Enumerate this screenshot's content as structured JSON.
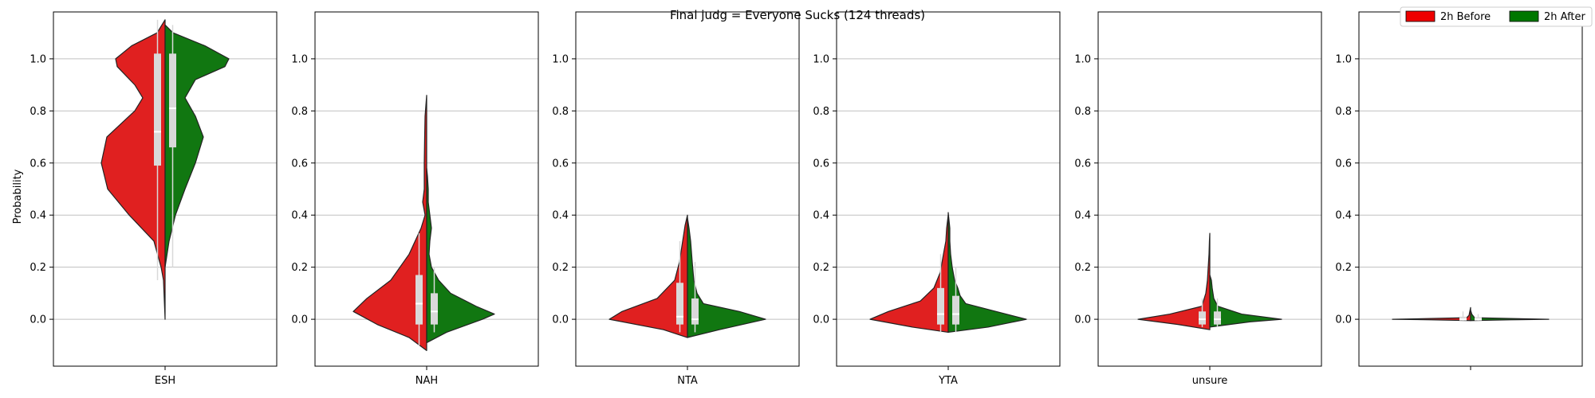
{
  "chart_data": {
    "type": "violin",
    "title": "Final judg = Everyone Sucks (124 threads)",
    "ylabel": "Probability",
    "ylim": [
      -0.18,
      1.18
    ],
    "yticks": [
      0.0,
      0.2,
      0.4,
      0.6,
      0.8,
      1.0
    ],
    "yticks_labels": [
      "0.0",
      "0.2",
      "0.4",
      "0.6",
      "0.8",
      "1.0"
    ],
    "grid": "horizontal",
    "legend": {
      "placement": "top-right",
      "entries": [
        {
          "label": "2h Before",
          "color": "#ee0000"
        },
        {
          "label": "2h After",
          "color": "#007700"
        }
      ]
    },
    "colors": {
      "before": "#e02020",
      "after": "#117711",
      "box": "#d9d9d9",
      "grid": "#c0c0c0"
    },
    "panels": [
      {
        "category": "ESH",
        "before": {
          "box": {
            "q1": 0.59,
            "median": 0.72,
            "q3": 1.02,
            "wlo": 0.15,
            "whi": 1.15
          },
          "profile": [
            [
              0.0,
              0.0
            ],
            [
              0.15,
              0.02
            ],
            [
              0.2,
              0.05
            ],
            [
              0.3,
              0.14
            ],
            [
              0.4,
              0.45
            ],
            [
              0.5,
              0.72
            ],
            [
              0.6,
              0.8
            ],
            [
              0.7,
              0.73
            ],
            [
              0.8,
              0.38
            ],
            [
              0.85,
              0.28
            ],
            [
              0.9,
              0.38
            ],
            [
              0.97,
              0.6
            ],
            [
              1.0,
              0.62
            ],
            [
              1.05,
              0.42
            ],
            [
              1.1,
              0.1
            ],
            [
              1.15,
              0.0
            ]
          ]
        },
        "after": {
          "box": {
            "q1": 0.66,
            "median": 0.81,
            "q3": 1.02,
            "wlo": 0.2,
            "whi": 1.13
          },
          "profile": [
            [
              0.2,
              0.0
            ],
            [
              0.3,
              0.05
            ],
            [
              0.4,
              0.13
            ],
            [
              0.5,
              0.25
            ],
            [
              0.6,
              0.38
            ],
            [
              0.7,
              0.48
            ],
            [
              0.78,
              0.38
            ],
            [
              0.85,
              0.25
            ],
            [
              0.92,
              0.38
            ],
            [
              0.97,
              0.75
            ],
            [
              1.0,
              0.8
            ],
            [
              1.05,
              0.5
            ],
            [
              1.1,
              0.1
            ],
            [
              1.13,
              0.0
            ]
          ]
        }
      },
      {
        "category": "NAH",
        "before": {
          "box": {
            "q1": -0.02,
            "median": 0.06,
            "q3": 0.17,
            "wlo": -0.1,
            "whi": 0.33
          },
          "profile": [
            [
              -0.12,
              0.0
            ],
            [
              -0.07,
              0.22
            ],
            [
              -0.02,
              0.62
            ],
            [
              0.03,
              0.92
            ],
            [
              0.08,
              0.75
            ],
            [
              0.15,
              0.45
            ],
            [
              0.25,
              0.22
            ],
            [
              0.35,
              0.07
            ],
            [
              0.4,
              0.02
            ],
            [
              0.45,
              0.05
            ],
            [
              0.5,
              0.03
            ],
            [
              0.6,
              0.03
            ],
            [
              0.7,
              0.025
            ],
            [
              0.78,
              0.02
            ],
            [
              0.82,
              0.01
            ],
            [
              0.86,
              0.0
            ]
          ]
        },
        "after": {
          "box": {
            "q1": -0.02,
            "median": 0.03,
            "q3": 0.1,
            "wlo": -0.05,
            "whi": 0.2
          },
          "profile": [
            [
              -0.09,
              0.0
            ],
            [
              -0.05,
              0.25
            ],
            [
              0.0,
              0.7
            ],
            [
              0.02,
              0.85
            ],
            [
              0.05,
              0.62
            ],
            [
              0.1,
              0.3
            ],
            [
              0.15,
              0.15
            ],
            [
              0.2,
              0.06
            ],
            [
              0.25,
              0.03
            ],
            [
              0.3,
              0.04
            ],
            [
              0.35,
              0.06
            ],
            [
              0.4,
              0.04
            ],
            [
              0.45,
              0.02
            ],
            [
              0.5,
              0.02
            ],
            [
              0.55,
              0.01
            ],
            [
              0.58,
              0.0
            ]
          ]
        }
      },
      {
        "category": "NTA",
        "before": {
          "box": {
            "q1": -0.02,
            "median": 0.01,
            "q3": 0.14,
            "wlo": -0.05,
            "whi": 0.3
          },
          "profile": [
            [
              -0.07,
              0.0
            ],
            [
              -0.04,
              0.3
            ],
            [
              0.0,
              0.98
            ],
            [
              0.03,
              0.82
            ],
            [
              0.08,
              0.38
            ],
            [
              0.15,
              0.16
            ],
            [
              0.22,
              0.1
            ],
            [
              0.3,
              0.06
            ],
            [
              0.36,
              0.03
            ],
            [
              0.4,
              0.0
            ]
          ]
        },
        "after": {
          "box": {
            "q1": -0.02,
            "median": 0.0,
            "q3": 0.08,
            "wlo": -0.05,
            "whi": 0.22
          },
          "profile": [
            [
              -0.07,
              0.0
            ],
            [
              -0.04,
              0.4
            ],
            [
              0.0,
              0.98
            ],
            [
              0.03,
              0.65
            ],
            [
              0.06,
              0.2
            ],
            [
              0.1,
              0.12
            ],
            [
              0.15,
              0.08
            ],
            [
              0.22,
              0.06
            ],
            [
              0.3,
              0.04
            ],
            [
              0.35,
              0.02
            ],
            [
              0.39,
              0.0
            ]
          ]
        }
      },
      {
        "category": "YTA",
        "before": {
          "box": {
            "q1": -0.02,
            "median": 0.02,
            "q3": 0.12,
            "wlo": -0.05,
            "whi": 0.25
          },
          "profile": [
            [
              -0.05,
              0.0
            ],
            [
              -0.03,
              0.45
            ],
            [
              0.0,
              0.98
            ],
            [
              0.03,
              0.75
            ],
            [
              0.07,
              0.35
            ],
            [
              0.12,
              0.18
            ],
            [
              0.18,
              0.1
            ],
            [
              0.25,
              0.06
            ],
            [
              0.3,
              0.03
            ],
            [
              0.35,
              0.02
            ],
            [
              0.4,
              0.0
            ]
          ]
        },
        "after": {
          "box": {
            "q1": -0.02,
            "median": 0.02,
            "q3": 0.09,
            "wlo": -0.05,
            "whi": 0.2
          },
          "profile": [
            [
              -0.05,
              0.0
            ],
            [
              -0.03,
              0.5
            ],
            [
              0.0,
              0.98
            ],
            [
              0.03,
              0.6
            ],
            [
              0.06,
              0.22
            ],
            [
              0.09,
              0.15
            ],
            [
              0.12,
              0.12
            ],
            [
              0.15,
              0.08
            ],
            [
              0.2,
              0.05
            ],
            [
              0.25,
              0.03
            ],
            [
              0.3,
              0.02
            ],
            [
              0.35,
              0.02
            ],
            [
              0.41,
              0.0
            ]
          ]
        }
      },
      {
        "category": "unsure",
        "before": {
          "box": {
            "q1": -0.02,
            "median": 0.0,
            "q3": 0.03,
            "wlo": -0.03,
            "whi": 0.08
          },
          "profile": [
            [
              -0.04,
              0.0
            ],
            [
              -0.02,
              0.4
            ],
            [
              0.0,
              0.9
            ],
            [
              0.02,
              0.5
            ],
            [
              0.05,
              0.1
            ],
            [
              0.1,
              0.05
            ],
            [
              0.15,
              0.03
            ],
            [
              0.2,
              0.02
            ],
            [
              0.25,
              0.01
            ],
            [
              0.3,
              0.005
            ],
            [
              0.33,
              0.0
            ]
          ]
        },
        "after": {
          "box": {
            "q1": -0.02,
            "median": 0.0,
            "q3": 0.03,
            "wlo": -0.03,
            "whi": 0.08
          },
          "profile": [
            [
              -0.03,
              0.0
            ],
            [
              -0.01,
              0.5
            ],
            [
              0.0,
              0.9
            ],
            [
              0.02,
              0.4
            ],
            [
              0.05,
              0.1
            ],
            [
              0.08,
              0.05
            ],
            [
              0.12,
              0.03
            ],
            [
              0.15,
              0.02
            ],
            [
              0.17,
              0.0
            ]
          ]
        }
      },
      {
        "category": "",
        "before": {
          "box": {
            "q1": -0.005,
            "median": 0.0,
            "q3": 0.01,
            "wlo": -0.005,
            "whi": 0.03
          },
          "profile": [
            [
              -0.005,
              0.0
            ],
            [
              -0.002,
              0.5
            ],
            [
              0.0,
              0.98
            ],
            [
              0.003,
              0.5
            ],
            [
              0.006,
              0.05
            ],
            [
              0.015,
              0.02
            ],
            [
              0.03,
              0.01
            ],
            [
              0.045,
              0.0
            ]
          ]
        },
        "after": {
          "box": {
            "q1": -0.005,
            "median": 0.0,
            "q3": 0.008,
            "wlo": -0.005,
            "whi": 0.02
          },
          "profile": [
            [
              -0.005,
              0.0
            ],
            [
              -0.002,
              0.5
            ],
            [
              0.0,
              0.98
            ],
            [
              0.003,
              0.5
            ],
            [
              0.006,
              0.05
            ],
            [
              0.02,
              0.015
            ],
            [
              0.035,
              0.0
            ]
          ]
        }
      }
    ]
  }
}
